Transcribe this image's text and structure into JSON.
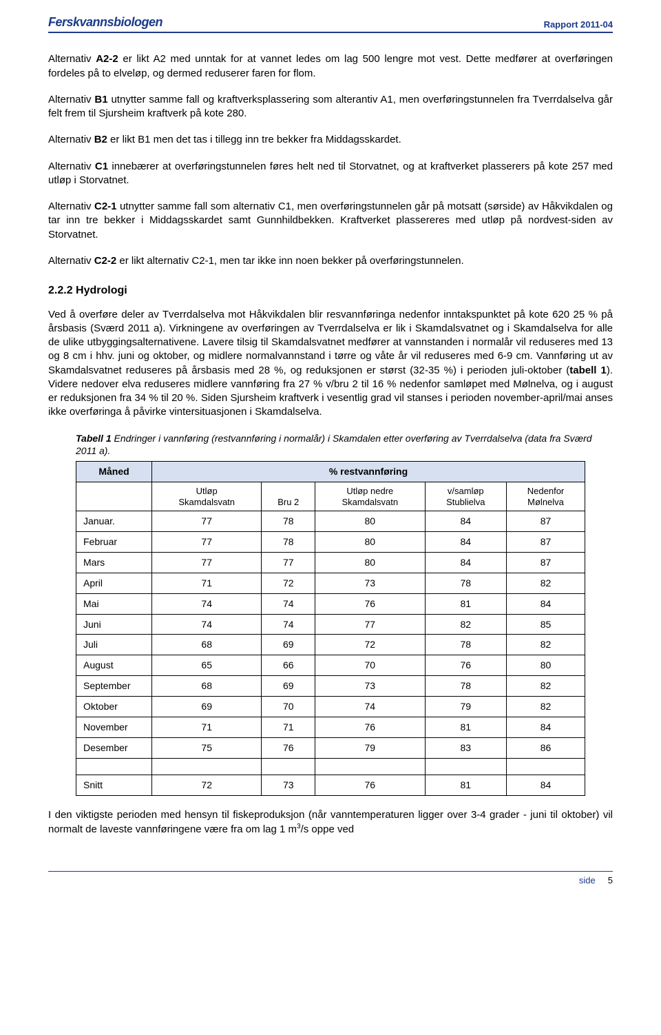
{
  "header": {
    "brand": "Ferskvannsbiologen",
    "report_id": "Rapport 2011-04"
  },
  "paragraphs": {
    "p1_pre": "Alternativ ",
    "p1_bold": "A2-2",
    "p1_post": " er likt A2 med unntak for at vannet ledes om lag 500 lengre mot vest. Dette medfører at overføringen fordeles på to elveløp, og dermed reduserer faren for flom.",
    "p2_pre": "Alternativ ",
    "p2_bold": "B1",
    "p2_post": " utnytter samme fall og kraftverksplassering som alterantiv A1, men overføringstunnelen fra Tverrdalselva går felt frem til Sjursheim kraftverk på kote 280.",
    "p3_pre": "Alternativ ",
    "p3_bold": "B2",
    "p3_post": " er likt B1 men det tas i tillegg inn tre bekker fra Middagsskardet.",
    "p4_pre": "Alternativ ",
    "p4_bold": "C1",
    "p4_post": " innebærer at overføringstunnelen føres helt ned til Storvatnet, og at kraftverket plasserers på kote 257 med utløp i Storvatnet.",
    "p5_pre": "Alternativ ",
    "p5_bold": "C2-1",
    "p5_post": " utnytter samme fall som alternativ C1, men overføringstunnelen går på motsatt (sørside) av Håkvikdalen og tar inn tre bekker i Middagsskardet samt Gunnhildbekken. Kraftverket plassereres med utløp på nordvest-siden av Storvatnet.",
    "p6_pre": "Alternativ ",
    "p6_bold": "C2-2",
    "p6_post": " er likt alternativ C2-1, men tar ikke inn noen bekker på overføringstunnelen."
  },
  "section": {
    "heading": "2.2.2 Hydrologi",
    "body": "Ved å overføre deler av Tverrdalselva mot Håkvikdalen blir resvannføringa nedenfor inntakspunktet på kote 620  25 % på årsbasis (Sværd 2011 a). Virkningene av overføringen av Tverrdalselva er lik i Skamdalsvatnet og i Skamdalselva for alle de ulike utbyggingsalternativene. Lavere tilsig til Skamdalsvatnet medfører at vannstanden i normalår vil reduseres med 13 og 8 cm i hhv. juni og oktober, og midlere normalvannstand i tørre og våte år vil reduseres med 6-9 cm. Vannføring ut av Skamdalsvatnet reduseres på årsbasis med 28 %, og reduksjonen er størst (32-35 %) i perioden juli-oktober (",
    "body_bold": "tabell 1",
    "body_post": "). Videre nedover elva reduseres midlere vannføring fra 27 % v/bru 2 til 16 % nedenfor samløpet med Mølnelva, og i august er reduksjonen fra 34 % til 20 %. Siden Sjursheim kraftverk i vesentlig grad vil stanses i perioden november-april/mai anses ikke overføringa å påvirke vintersituasjonen i Skamdalselva."
  },
  "table": {
    "caption_label": "Tabell 1",
    "caption_text": " Endringer i vannføring (restvannføring i normalår) i Skamdalen etter  overføring av Tverrdalselva (data fra Sværd 2011 a).",
    "header_month": "Måned",
    "header_rest": "% restvannføring",
    "cols": {
      "c1_l1": "Utløp",
      "c1_l2": "Skamdalsvatn",
      "c2_l1": "Bru 2",
      "c3_l1": "Utløp nedre",
      "c3_l2": "Skamdalsvatn",
      "c4_l1": "v/samløp",
      "c4_l2": "Stublielva",
      "c5_l1": "Nedenfor",
      "c5_l2": "Mølnelva"
    },
    "rows": [
      {
        "m": "Januar.",
        "v": [
          "77",
          "78",
          "80",
          "84",
          "87"
        ]
      },
      {
        "m": "Februar",
        "v": [
          "77",
          "78",
          "80",
          "84",
          "87"
        ]
      },
      {
        "m": "Mars",
        "v": [
          "77",
          "77",
          "80",
          "84",
          "87"
        ]
      },
      {
        "m": "April",
        "v": [
          "71",
          "72",
          "73",
          "78",
          "82"
        ]
      },
      {
        "m": "Mai",
        "v": [
          "74",
          "74",
          "76",
          "81",
          "84"
        ]
      },
      {
        "m": "Juni",
        "v": [
          "74",
          "74",
          "77",
          "82",
          "85"
        ]
      },
      {
        "m": "Juli",
        "v": [
          "68",
          "69",
          "72",
          "78",
          "82"
        ]
      },
      {
        "m": "August",
        "v": [
          "65",
          "66",
          "70",
          "76",
          "80"
        ]
      },
      {
        "m": "September",
        "v": [
          "68",
          "69",
          "73",
          "78",
          "82"
        ]
      },
      {
        "m": "Oktober",
        "v": [
          "69",
          "70",
          "74",
          "79",
          "82"
        ]
      },
      {
        "m": "November",
        "v": [
          "71",
          "71",
          "76",
          "81",
          "84"
        ]
      },
      {
        "m": "Desember",
        "v": [
          "75",
          "76",
          "79",
          "83",
          "86"
        ]
      }
    ],
    "snitt": {
      "m": "Snitt",
      "v": [
        "72",
        "73",
        "76",
        "81",
        "84"
      ]
    }
  },
  "closing_para_pre": "I den viktigste perioden med hensyn til fiskeproduksjon (når vanntemperaturen ligger over 3-4 grader - juni til oktober) vil normalt de laveste vannføringene være fra om lag 1 m",
  "closing_para_sup": "3",
  "closing_para_post": "/s oppe ved",
  "footer": {
    "side_label": "side",
    "page_number": "5"
  }
}
